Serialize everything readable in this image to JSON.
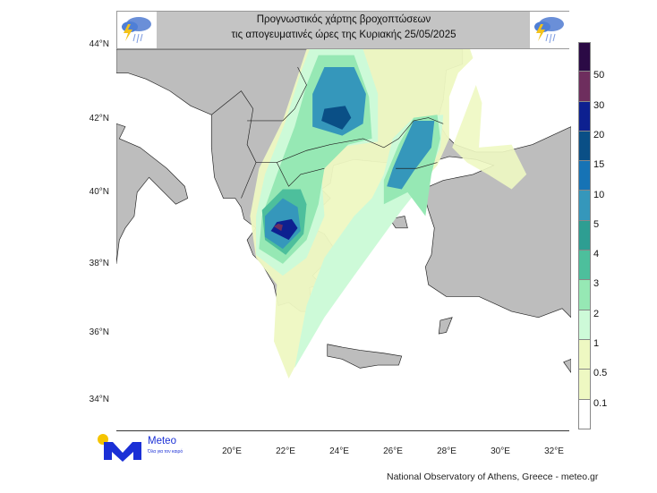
{
  "header": {
    "title_line1": "Προγνωστικός χάρτης βροχοπτώσεων",
    "title_line2": "τις απογευματινές ώρες  της Κυριακής 25/05/2025",
    "left_icon": "thunderstorm-rain-icon",
    "right_icon": "thunderstorm-rain-icon"
  },
  "map": {
    "lat_labels": [
      "44°N",
      "42°N",
      "40°N",
      "38°N",
      "36°N",
      "34°N"
    ],
    "lon_labels": [
      "20°E",
      "22°E",
      "24°E",
      "26°E",
      "28°E",
      "30°E",
      "32°E"
    ]
  },
  "legend": {
    "labels": [
      "50",
      "30",
      "20",
      "15",
      "10",
      "5",
      "4",
      "3",
      "2",
      "1",
      "0.5",
      "0.1"
    ],
    "colors": [
      "#2b0a45",
      "#6e2e5e",
      "#0d2090",
      "#0a4f86",
      "#1673b5",
      "#3597bb",
      "#2e9e92",
      "#4dbf9c",
      "#96e8b4",
      "#cdfad8",
      "#eef8c2",
      "#eef8c2",
      "#ffffff"
    ]
  },
  "logo": {
    "name": "Meteo",
    "tagline": "Όλα για τον καιρό"
  },
  "footer": "National Observatory of Athens, Greece - meteo.gr"
}
